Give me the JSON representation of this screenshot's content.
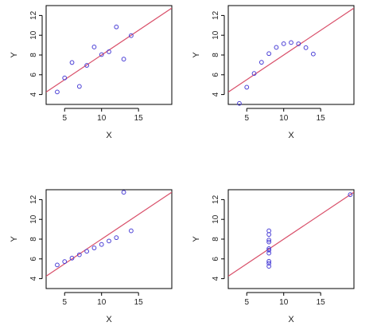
{
  "chart_data": [
    {
      "type": "scatter",
      "xlabel": "X",
      "ylabel": "Y",
      "xlim": [
        2.5,
        19.5
      ],
      "ylim": [
        3,
        13
      ],
      "x_ticks": [
        5,
        10,
        15
      ],
      "y_ticks": [
        4,
        6,
        8,
        10,
        12
      ],
      "x_tick_labels": [
        "5",
        "10",
        "15"
      ],
      "y_tick_labels": [
        "4",
        "6",
        "8",
        "10",
        "12"
      ],
      "grid": false,
      "point_color": "#4a3fd6",
      "line_color": "#d9506a",
      "points": [
        [
          10,
          8.04
        ],
        [
          8,
          6.95
        ],
        [
          13,
          7.58
        ],
        [
          9,
          8.81
        ],
        [
          11,
          8.33
        ],
        [
          14,
          9.96
        ],
        [
          6,
          7.24
        ],
        [
          4,
          4.26
        ],
        [
          12,
          10.84
        ],
        [
          7,
          4.82
        ],
        [
          5,
          5.68
        ]
      ],
      "fit_line": {
        "intercept": 3.0,
        "slope": 0.5
      }
    },
    {
      "type": "scatter",
      "xlabel": "X",
      "ylabel": "Y",
      "xlim": [
        2.5,
        19.5
      ],
      "ylim": [
        3,
        13
      ],
      "x_ticks": [
        5,
        10,
        15
      ],
      "y_ticks": [
        4,
        6,
        8,
        10,
        12
      ],
      "x_tick_labels": [
        "5",
        "10",
        "15"
      ],
      "y_tick_labels": [
        "4",
        "6",
        "8",
        "10",
        "12"
      ],
      "grid": false,
      "point_color": "#4a3fd6",
      "line_color": "#d9506a",
      "points": [
        [
          10,
          9.14
        ],
        [
          8,
          8.14
        ],
        [
          13,
          8.74
        ],
        [
          9,
          8.77
        ],
        [
          11,
          9.26
        ],
        [
          14,
          8.1
        ],
        [
          6,
          6.13
        ],
        [
          4,
          3.1
        ],
        [
          12,
          9.13
        ],
        [
          7,
          7.26
        ],
        [
          5,
          4.74
        ]
      ],
      "fit_line": {
        "intercept": 3.0,
        "slope": 0.5
      }
    },
    {
      "type": "scatter",
      "xlabel": "X",
      "ylabel": "Y",
      "xlim": [
        2.5,
        19.5
      ],
      "ylim": [
        3,
        13
      ],
      "x_ticks": [
        5,
        10,
        15
      ],
      "y_ticks": [
        4,
        6,
        8,
        10,
        12
      ],
      "x_tick_labels": [
        "5",
        "10",
        "15"
      ],
      "y_tick_labels": [
        "4",
        "6",
        "8",
        "10",
        "12"
      ],
      "grid": false,
      "point_color": "#4a3fd6",
      "line_color": "#d9506a",
      "points": [
        [
          10,
          7.46
        ],
        [
          8,
          6.77
        ],
        [
          13,
          12.74
        ],
        [
          9,
          7.11
        ],
        [
          11,
          7.81
        ],
        [
          14,
          8.84
        ],
        [
          6,
          6.08
        ],
        [
          4,
          5.39
        ],
        [
          12,
          8.15
        ],
        [
          7,
          6.42
        ],
        [
          5,
          5.73
        ]
      ],
      "fit_line": {
        "intercept": 3.0,
        "slope": 0.5
      }
    },
    {
      "type": "scatter",
      "xlabel": "X",
      "ylabel": "Y",
      "xlim": [
        2.5,
        19.5
      ],
      "ylim": [
        3,
        13
      ],
      "x_ticks": [
        5,
        10,
        15
      ],
      "y_ticks": [
        4,
        6,
        8,
        10,
        12
      ],
      "x_tick_labels": [
        "5",
        "10",
        "15"
      ],
      "y_tick_labels": [
        "4",
        "6",
        "8",
        "10",
        "12"
      ],
      "grid": false,
      "point_color": "#4a3fd6",
      "line_color": "#d9506a",
      "points": [
        [
          8,
          6.58
        ],
        [
          8,
          5.76
        ],
        [
          8,
          7.71
        ],
        [
          8,
          8.84
        ],
        [
          8,
          8.47
        ],
        [
          8,
          7.04
        ],
        [
          8,
          5.25
        ],
        [
          19,
          12.5
        ],
        [
          8,
          5.56
        ],
        [
          8,
          7.91
        ],
        [
          8,
          6.89
        ]
      ],
      "fit_line": {
        "intercept": 3.0,
        "slope": 0.5
      }
    }
  ]
}
